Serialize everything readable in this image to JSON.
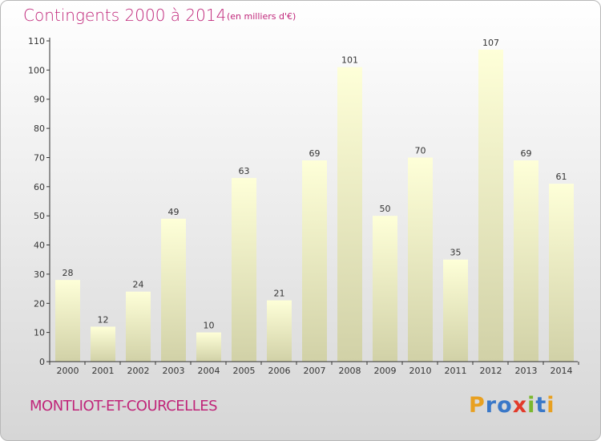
{
  "chart_data": {
    "type": "bar",
    "title": "Contingents 2000 à 2014",
    "subtitle": "(en milliers d'€)",
    "categories": [
      "2000",
      "2001",
      "2002",
      "2003",
      "2004",
      "2005",
      "2006",
      "2007",
      "2008",
      "2009",
      "2010",
      "2011",
      "2012",
      "2013",
      "2014"
    ],
    "values": [
      28,
      12,
      24,
      49,
      10,
      63,
      21,
      69,
      101,
      50,
      70,
      35,
      107,
      69,
      61
    ],
    "ylim": [
      0,
      110
    ],
    "yticks": [
      0,
      10,
      20,
      30,
      40,
      50,
      60,
      70,
      80,
      90,
      100,
      110
    ],
    "grid": false,
    "xlabel": "",
    "ylabel": ""
  },
  "footer": {
    "commune": "MONTLIOT-ET-COURCELLES",
    "logo_letters": [
      "P",
      "r",
      "o",
      "x",
      "i",
      "t",
      "i"
    ]
  },
  "colors": {
    "title": "#c0267a",
    "bar_top": "#feffd8",
    "bar_bottom": "#d1d1a7",
    "axis": "#333333",
    "logo": [
      "#e8a020",
      "#3a78c8",
      "#3a78c8",
      "#e23a2a",
      "#7ab82e",
      "#3a78c8",
      "#e8a020"
    ]
  }
}
